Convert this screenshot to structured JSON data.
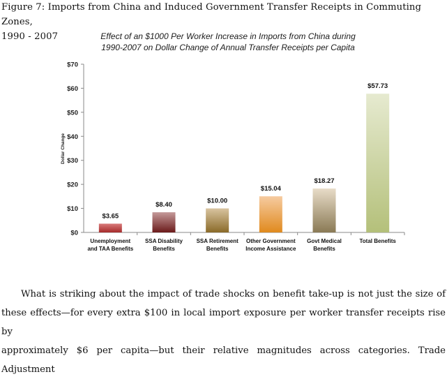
{
  "figure": {
    "caption_line1": "Figure 7: Imports from China and Induced Government Transfer Receipts in Commuting Zones,",
    "caption_line2": "1990 - 2007"
  },
  "chart_data": {
    "type": "bar",
    "title_lines": [
      "Effect of an $1000 Per Worker Increase in Imports from China during",
      "1990-2007 on Dollar Change of Annual Transfer Receipts per Capita"
    ],
    "xlabel": "",
    "ylabel": "Dollar Change",
    "ylim": [
      0,
      70
    ],
    "yticks": [
      0,
      10,
      20,
      30,
      40,
      50,
      60,
      70
    ],
    "ytick_labels": [
      "$0",
      "$10",
      "$20",
      "$30",
      "$40",
      "$50",
      "$60",
      "$70"
    ],
    "grid": false,
    "categories": [
      [
        "Unemployment",
        "and TAA Benefits"
      ],
      [
        "SSA Disability",
        "Benefits"
      ],
      [
        "SSA Retirement",
        "Benefits"
      ],
      [
        "Other Government",
        "Income Assistance"
      ],
      [
        "Govt Medical",
        "Benefits"
      ],
      [
        "Total Benefits"
      ]
    ],
    "values": [
      3.65,
      8.4,
      10.0,
      15.04,
      18.27,
      57.73
    ],
    "value_labels": [
      "$3.65",
      "$8.40",
      "$10.00",
      "$15.04",
      "$18.27",
      "$57.73"
    ],
    "colors": [
      [
        "#d97b7b",
        "#a52a2a"
      ],
      [
        "#c49a9a",
        "#6b1a1a"
      ],
      [
        "#d8c4a0",
        "#8a6a28"
      ],
      [
        "#f6cba0",
        "#e08a1e"
      ],
      [
        "#e8dcc8",
        "#8a7a55"
      ],
      [
        "#e6ead0",
        "#b4c07a"
      ]
    ]
  },
  "body": {
    "lines": [
      "What is striking about the impact of trade shocks on benefit take-up is not just the size of",
      "these effects—for every extra $100 in local import exposure per worker transfer receipts rise by",
      "approximately $6 per capita—but their relative magnitudes across categories.  Trade Adjustment"
    ]
  }
}
